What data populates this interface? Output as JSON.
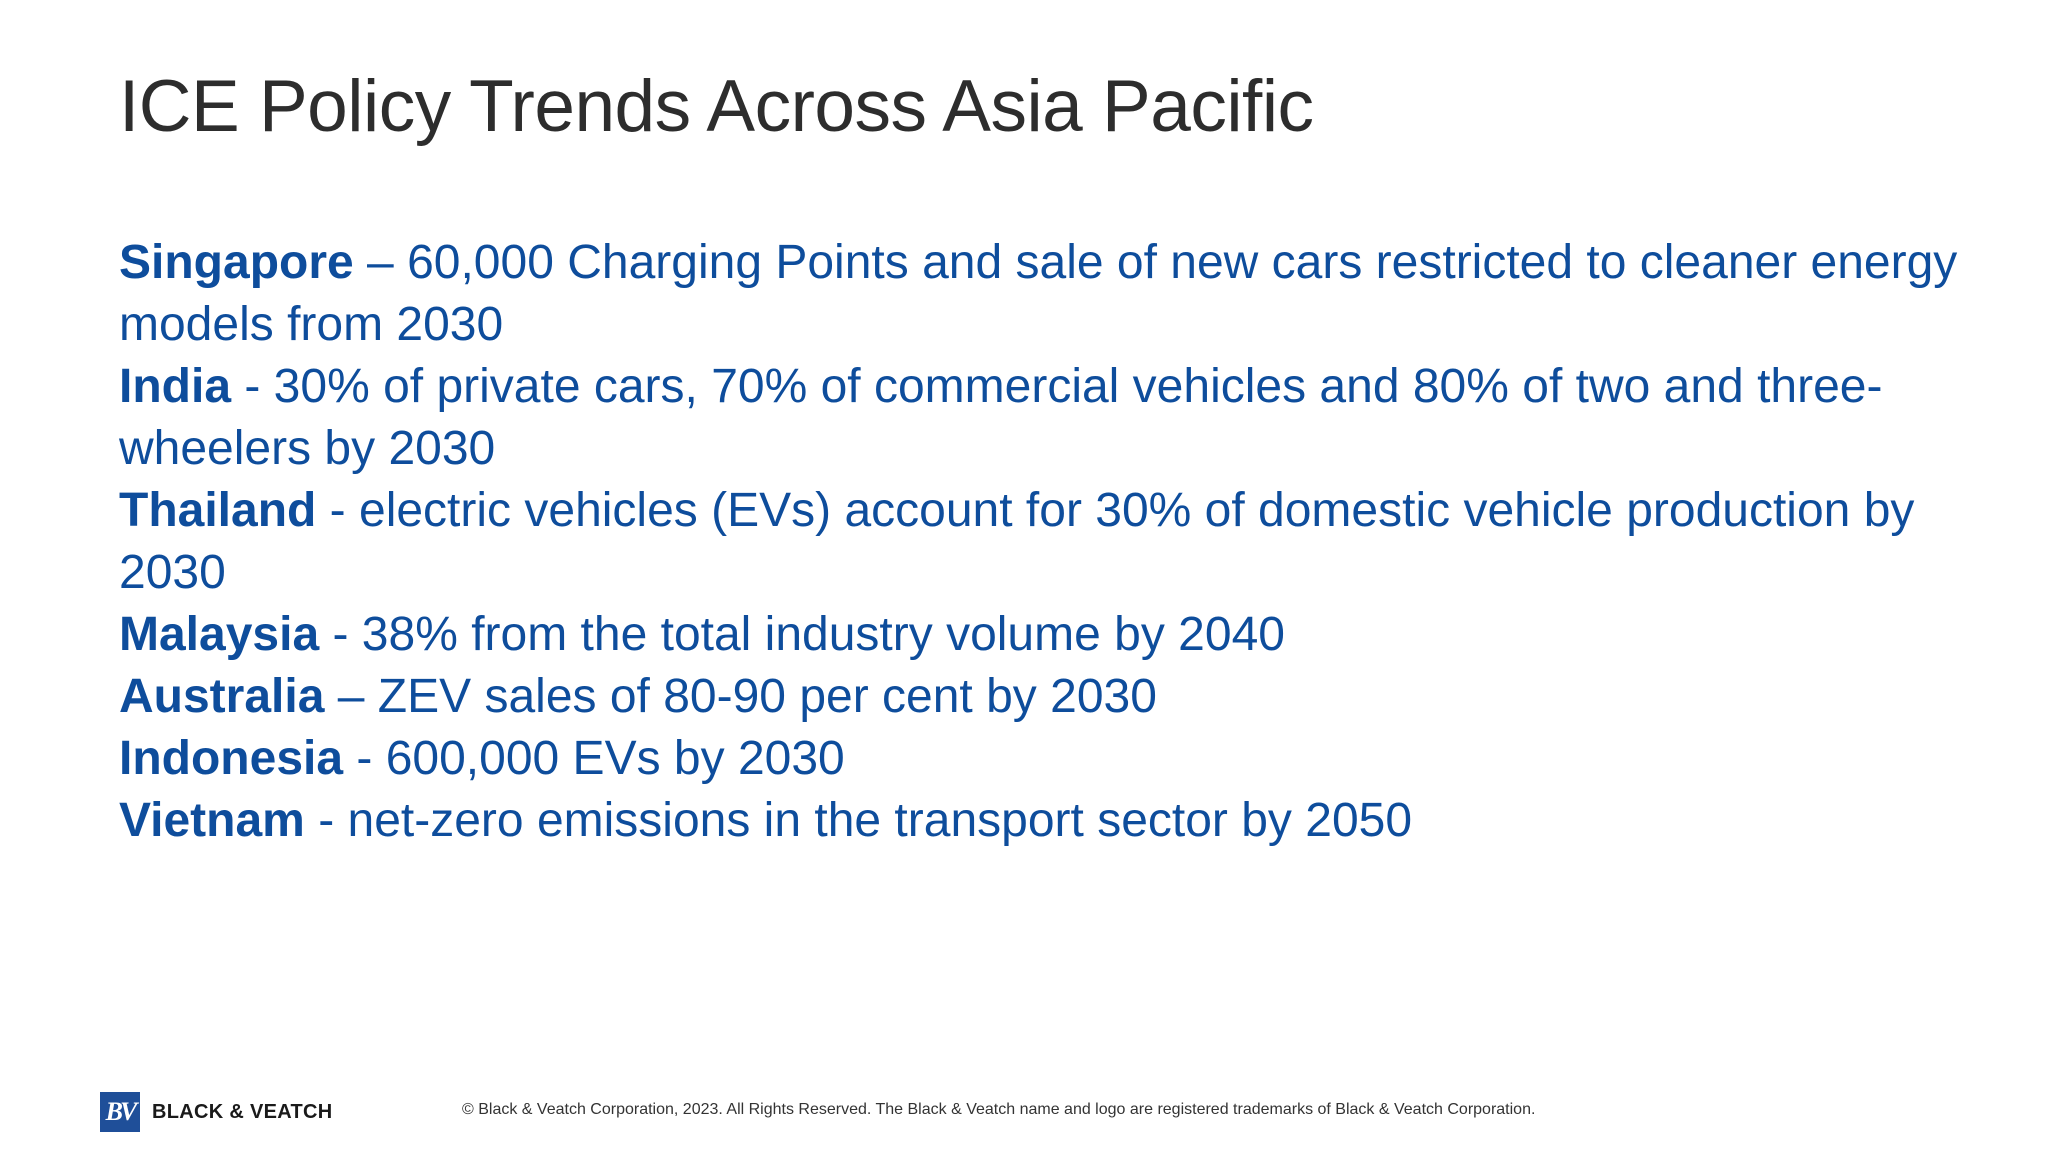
{
  "slide": {
    "title": "ICE Policy Trends Across Asia Pacific",
    "entries": [
      {
        "country": "Singapore",
        "text": " – 60,000 Charging Points and sale of new cars restricted to cleaner energy models from 2030"
      },
      {
        "country": "India",
        "text": " - 30% of private cars, 70% of commercial vehicles and 80% of two and three-wheelers by 2030"
      },
      {
        "country": "Thailand",
        "text": " - electric vehicles (EVs) account for 30% of domestic vehicle production by 2030"
      },
      {
        "country": "Malaysia",
        "text": " - 38% from the total industry volume by 2040"
      },
      {
        "country": "Australia",
        "text": " – ZEV sales of 80-90 per cent by 2030"
      },
      {
        "country": "Indonesia",
        "text": " - 600,000 EVs by 2030"
      },
      {
        "country": "Vietnam",
        "text": " - net-zero emissions in the transport sector by 2050"
      }
    ]
  },
  "footer": {
    "logo_mark": "BV",
    "logo_text": "BLACK & VEATCH",
    "copyright": "© Black & Veatch Corporation, 2023. All Rights Reserved. The Black & Veatch name and logo are registered trademarks of Black & Veatch Corporation."
  },
  "colors": {
    "title": "#2d2d2d",
    "body": "#0e4d9c",
    "logo": "#1f4f99"
  }
}
